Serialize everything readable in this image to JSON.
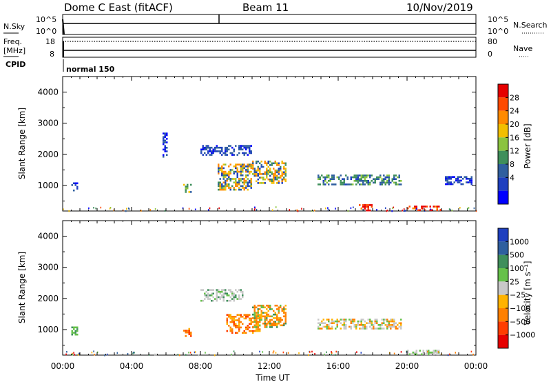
{
  "header": {
    "title": "Dome C East (fitACF)",
    "beam": "Beam 11",
    "date": "10/Nov/2019"
  },
  "strips": {
    "nsky_label": "N.Sky",
    "nsearch_label": "N.Search",
    "noise_ticks": [
      "10^5",
      "10^0"
    ],
    "freq_label_1": "Freq.",
    "freq_label_2": "[MHz]",
    "freq_ticks": [
      "18",
      "8"
    ],
    "nave_label": "Nave",
    "nave_ticks": [
      "80",
      "0"
    ],
    "cpid_label": "CPID",
    "cpid_value": "normal 150"
  },
  "panels": {
    "ylabel": "Slant Range [km]",
    "y_ticks": [
      "4000",
      "3000",
      "2000",
      "1000"
    ],
    "xlabel": "Time UT",
    "x_ticks": [
      "00:00",
      "04:00",
      "08:00",
      "12:00",
      "16:00",
      "20:00",
      "00:00"
    ]
  },
  "colorbars": {
    "power_label": "Power [dB]",
    "power_ticks": [
      "28",
      "24",
      "20",
      "16",
      "12",
      "8",
      "4"
    ],
    "power_colors": [
      "#e60000",
      "#ff4a00",
      "#ff8a00",
      "#f2bf00",
      "#8bc43f",
      "#3f8f5b",
      "#2f5f9f",
      "#1e3fbf",
      "#0000ff"
    ],
    "velocity_label": "Velocity [m s⁻¹]",
    "velocity_ticks": [
      "1000",
      "500",
      "100",
      "25",
      "−25",
      "−100",
      "−500",
      "−1000"
    ],
    "velocity_colors": [
      "#1e3fbf",
      "#2f5f9f",
      "#3f8f5b",
      "#66c14a",
      "#c8c8c8",
      "#ffb300",
      "#ff8000",
      "#ff3d00",
      "#e60000"
    ]
  },
  "chart_data": [
    {
      "type": "heatmap",
      "title": "Power",
      "xlabel": "Time UT",
      "ylabel": "Slant Range [km]",
      "xlim": [
        "00:00",
        "24:00"
      ],
      "ylim": [
        180,
        4500
      ],
      "colorbar": {
        "label": "Power [dB]",
        "range": [
          0,
          30
        ]
      },
      "regions": [
        {
          "t": [
            0.5,
            0.9
          ],
          "r": [
            850,
            1100
          ],
          "level": "low"
        },
        {
          "t": [
            5.8,
            6.1
          ],
          "r": [
            1900,
            2700
          ],
          "level": "low"
        },
        {
          "t": [
            7.0,
            7.5
          ],
          "r": [
            800,
            1050
          ],
          "level": "mid"
        },
        {
          "t": [
            8.0,
            11.0
          ],
          "r": [
            2000,
            2300
          ],
          "level": "low"
        },
        {
          "t": [
            9.0,
            11.0
          ],
          "r": [
            850,
            1700
          ],
          "level": "mid-high"
        },
        {
          "t": [
            11.0,
            13.0
          ],
          "r": [
            1100,
            1800
          ],
          "level": "mid-high"
        },
        {
          "t": [
            14.8,
            19.7
          ],
          "r": [
            1050,
            1350
          ],
          "level": "low-mid"
        },
        {
          "t": [
            17.2,
            18.0
          ],
          "r": [
            200,
            400
          ],
          "level": "high"
        },
        {
          "t": [
            20.0,
            22.0
          ],
          "r": [
            200,
            350
          ],
          "level": "high"
        },
        {
          "t": [
            22.2,
            23.8
          ],
          "r": [
            1050,
            1300
          ],
          "level": "low"
        }
      ]
    },
    {
      "type": "heatmap",
      "title": "Velocity",
      "xlabel": "Time UT",
      "ylabel": "Slant Range [km]",
      "xlim": [
        "00:00",
        "24:00"
      ],
      "ylim": [
        180,
        4500
      ],
      "colorbar": {
        "label": "Velocity [m s⁻¹]",
        "range": [
          -1000,
          1000
        ]
      },
      "regions": [
        {
          "t": [
            0.5,
            0.9
          ],
          "r": [
            850,
            1100
          ],
          "level": "~100"
        },
        {
          "t": [
            7.0,
            7.5
          ],
          "r": [
            800,
            1050
          ],
          "level": "~-500"
        },
        {
          "t": [
            8.0,
            10.5
          ],
          "r": [
            1900,
            2300
          ],
          "level": "~25 to -25"
        },
        {
          "t": [
            9.5,
            11.5
          ],
          "r": [
            900,
            1500
          ],
          "level": "~-500"
        },
        {
          "t": [
            11.0,
            13.0
          ],
          "r": [
            1100,
            1800
          ],
          "level": "~-500 to 100"
        },
        {
          "t": [
            14.8,
            19.7
          ],
          "r": [
            1050,
            1350
          ],
          "level": "~-100 to 25"
        },
        {
          "t": [
            20.0,
            22.0
          ],
          "r": [
            200,
            350
          ],
          "level": "~25"
        }
      ]
    }
  ]
}
